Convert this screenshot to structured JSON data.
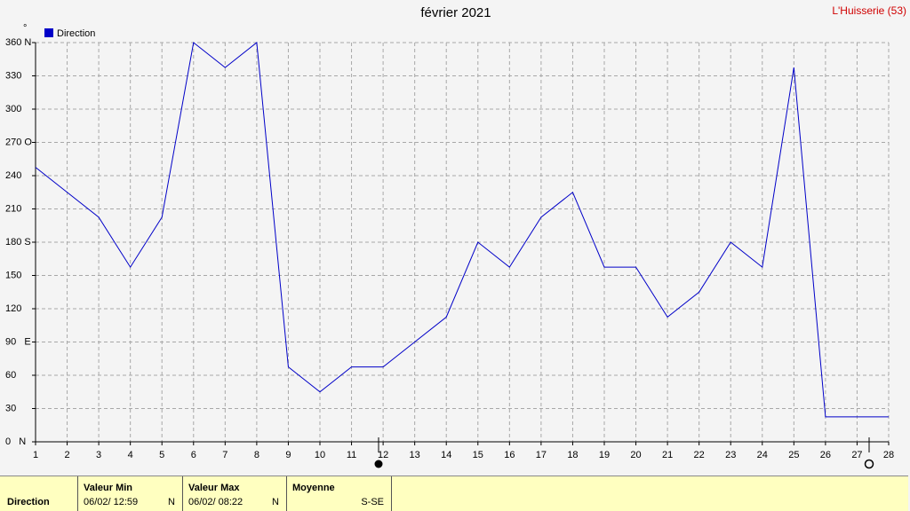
{
  "chart_data": {
    "type": "line",
    "title": "février 2021",
    "station": "L'Huisserie (53)",
    "y_unit": "°",
    "x": [
      1,
      2,
      3,
      4,
      5,
      6,
      7,
      8,
      9,
      10,
      11,
      12,
      13,
      14,
      15,
      16,
      17,
      18,
      19,
      20,
      21,
      22,
      23,
      24,
      25,
      26,
      27,
      28
    ],
    "series": [
      {
        "name": "Direction",
        "color": "#0000c8",
        "values": [
          247.5,
          225,
          202.5,
          157.5,
          202.5,
          360,
          337.5,
          360,
          67.5,
          45,
          67.5,
          67.5,
          90,
          112.5,
          180,
          157.5,
          202.5,
          225,
          157.5,
          157.5,
          112.5,
          135,
          180,
          157.5,
          337.5,
          22.5,
          22.5,
          22.5
        ]
      }
    ],
    "xlim": [
      1,
      28
    ],
    "xticks": [
      1,
      2,
      3,
      4,
      5,
      6,
      7,
      8,
      9,
      10,
      11,
      12,
      13,
      14,
      15,
      16,
      17,
      18,
      19,
      20,
      21,
      22,
      23,
      24,
      25,
      26,
      27,
      28
    ],
    "ylim": [
      0,
      360
    ],
    "yticks": [
      {
        "value": 0,
        "label": "0   N"
      },
      30,
      60,
      {
        "value": 90,
        "label": "90   E"
      },
      120,
      150,
      {
        "value": 180,
        "label": "180 S"
      },
      210,
      240,
      {
        "value": 270,
        "label": "270 O"
      },
      300,
      330,
      {
        "value": 360,
        "label": "360 N"
      }
    ],
    "grid": true,
    "legend": "top-left"
  },
  "table": {
    "row_label": "Direction",
    "min": {
      "header": "Valeur Min",
      "date": "06/02/  12:59",
      "dir": "N"
    },
    "max": {
      "header": "Valeur Max",
      "date": "06/02/  08:22",
      "dir": "N"
    },
    "mean": {
      "header": "Moyenne",
      "dir": "S-SE"
    }
  }
}
